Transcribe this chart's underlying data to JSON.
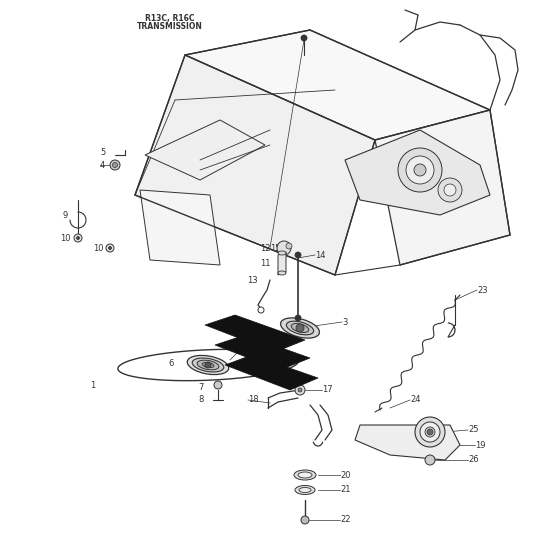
{
  "title_line1": "R13C, R16C",
  "title_line2": "TRANSMISSION",
  "bg_color": "#ffffff",
  "line_color": "#333333",
  "lw": 0.7
}
